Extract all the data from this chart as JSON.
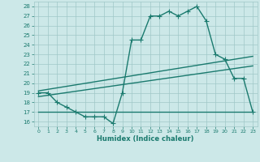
{
  "line1_x": [
    0,
    1,
    2,
    3,
    4,
    5,
    6,
    7,
    8,
    9,
    10,
    11,
    12,
    13,
    14,
    15,
    16,
    17,
    18,
    19,
    20,
    21,
    22,
    23
  ],
  "line1_y": [
    19.0,
    19.0,
    18.0,
    17.5,
    17.0,
    16.5,
    16.5,
    16.5,
    15.8,
    19.0,
    24.5,
    24.5,
    27.0,
    27.0,
    27.5,
    27.0,
    27.5,
    28.0,
    26.5,
    23.0,
    22.5,
    20.5,
    20.5,
    17.0
  ],
  "line2_x": [
    0,
    23
  ],
  "line2_y": [
    19.2,
    22.8
  ],
  "line3_x": [
    0,
    23
  ],
  "line3_y": [
    18.6,
    21.8
  ],
  "line4_x": [
    0,
    17,
    23
  ],
  "line4_y": [
    17.0,
    17.0,
    17.0
  ],
  "line_color": "#1a7a6e",
  "bg_color": "#cce8e8",
  "grid_color": "#a0c8c8",
  "xlabel": "Humidex (Indice chaleur)",
  "xlim": [
    -0.5,
    23.5
  ],
  "ylim": [
    15.5,
    28.5
  ],
  "yticks": [
    16,
    17,
    18,
    19,
    20,
    21,
    22,
    23,
    24,
    25,
    26,
    27,
    28
  ],
  "xticks": [
    0,
    1,
    2,
    3,
    4,
    5,
    6,
    7,
    8,
    9,
    10,
    11,
    12,
    13,
    14,
    15,
    16,
    17,
    18,
    19,
    20,
    21,
    22,
    23
  ],
  "marker": "+",
  "markersize": 4,
  "linewidth": 1.0
}
